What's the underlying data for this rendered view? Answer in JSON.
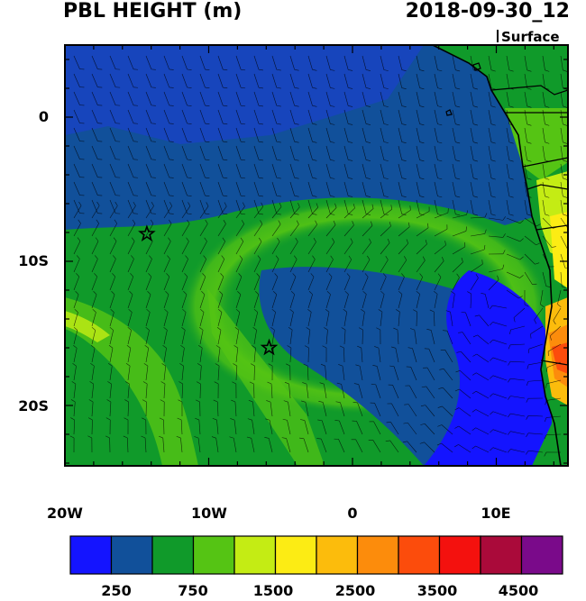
{
  "title": "PBL HEIGHT (m)",
  "datetime": "2018-09-30_12",
  "level": "Surface",
  "axes": {
    "lat_labels": [
      "0",
      "10S",
      "20S"
    ],
    "lon_labels": [
      "20W",
      "10W",
      "0",
      "10E"
    ]
  },
  "colorbar": {
    "colors": [
      "#1414ff",
      "#11509a",
      "#109a2a",
      "#55c414",
      "#c4ec14",
      "#fcec14",
      "#fcbc0c",
      "#fc8c0c",
      "#fc4c0c",
      "#f4110e",
      "#aa0a3a",
      "#7a0a8a"
    ],
    "labels": [
      "250",
      "750",
      "1500",
      "2500",
      "3500",
      "4500"
    ]
  },
  "markers": [
    {
      "name": "star-marker-west",
      "lon": -14.3,
      "lat": -8.1
    },
    {
      "name": "star-marker-central",
      "lon": -5.8,
      "lat": -16.0
    }
  ]
}
